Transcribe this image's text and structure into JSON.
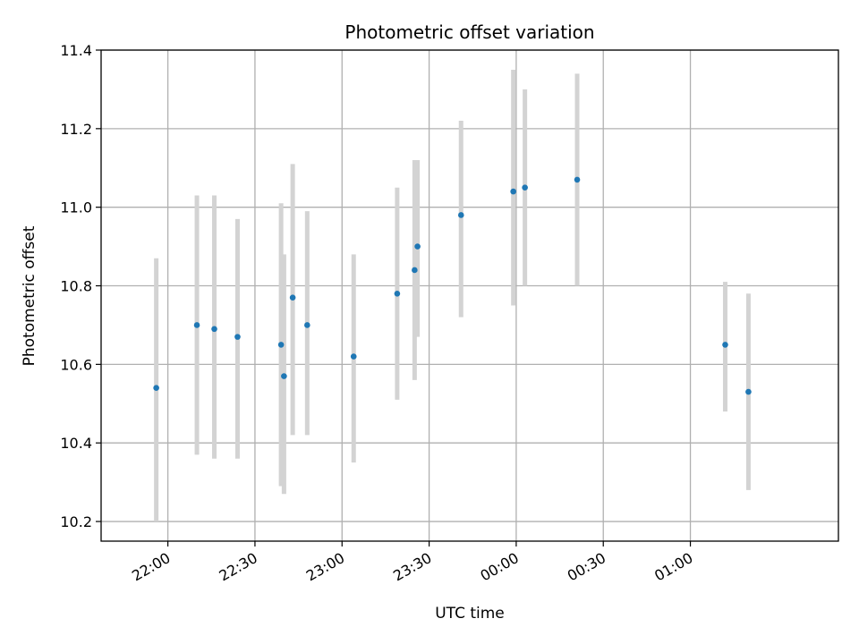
{
  "chart_data": {
    "type": "scatter",
    "title": "Photometric offset variation",
    "xlabel": "UTC time",
    "ylabel": "Photometric offset",
    "x_axis": {
      "kind": "time",
      "range": [
        "21:37",
        "01:51"
      ],
      "ticks": [
        "22:00",
        "22:30",
        "23:00",
        "23:30",
        "00:00",
        "00:30",
        "01:00"
      ]
    },
    "y_axis": {
      "range": [
        10.15,
        11.4
      ],
      "ticks": [
        "10.2",
        "10.4",
        "10.6",
        "10.8",
        "11.0",
        "11.2",
        "11.4"
      ]
    },
    "grid": true,
    "marker_color": "#1f77b4",
    "errorbar_color": "#d3d3d3",
    "series": [
      {
        "points": [
          {
            "time": "21:56",
            "y": 10.54,
            "ylow": 10.2,
            "yhigh": 10.87
          },
          {
            "time": "22:10",
            "y": 10.7,
            "ylow": 10.37,
            "yhigh": 11.03
          },
          {
            "time": "22:16",
            "y": 10.69,
            "ylow": 10.36,
            "yhigh": 11.03
          },
          {
            "time": "22:24",
            "y": 10.67,
            "ylow": 10.36,
            "yhigh": 10.97
          },
          {
            "time": "22:39",
            "y": 10.65,
            "ylow": 10.29,
            "yhigh": 11.01
          },
          {
            "time": "22:40",
            "y": 10.57,
            "ylow": 10.27,
            "yhigh": 10.88
          },
          {
            "time": "22:43",
            "y": 10.77,
            "ylow": 10.42,
            "yhigh": 11.11
          },
          {
            "time": "22:48",
            "y": 10.7,
            "ylow": 10.42,
            "yhigh": 10.99
          },
          {
            "time": "23:04",
            "y": 10.62,
            "ylow": 10.35,
            "yhigh": 10.88
          },
          {
            "time": "23:19",
            "y": 10.78,
            "ylow": 10.51,
            "yhigh": 11.05
          },
          {
            "time": "23:25",
            "y": 10.84,
            "ylow": 10.56,
            "yhigh": 11.12
          },
          {
            "time": "23:26",
            "y": 10.9,
            "ylow": 10.67,
            "yhigh": 11.12
          },
          {
            "time": "23:41",
            "y": 10.98,
            "ylow": 10.72,
            "yhigh": 11.22
          },
          {
            "time": "23:59",
            "y": 11.04,
            "ylow": 10.75,
            "yhigh": 11.35
          },
          {
            "time": "00:03",
            "y": 11.05,
            "ylow": 10.8,
            "yhigh": 11.3
          },
          {
            "time": "00:21",
            "y": 11.07,
            "ylow": 10.8,
            "yhigh": 11.34
          },
          {
            "time": "01:12",
            "y": 10.65,
            "ylow": 10.48,
            "yhigh": 10.81
          },
          {
            "time": "01:20",
            "y": 10.53,
            "ylow": 10.28,
            "yhigh": 10.78
          }
        ]
      }
    ]
  }
}
